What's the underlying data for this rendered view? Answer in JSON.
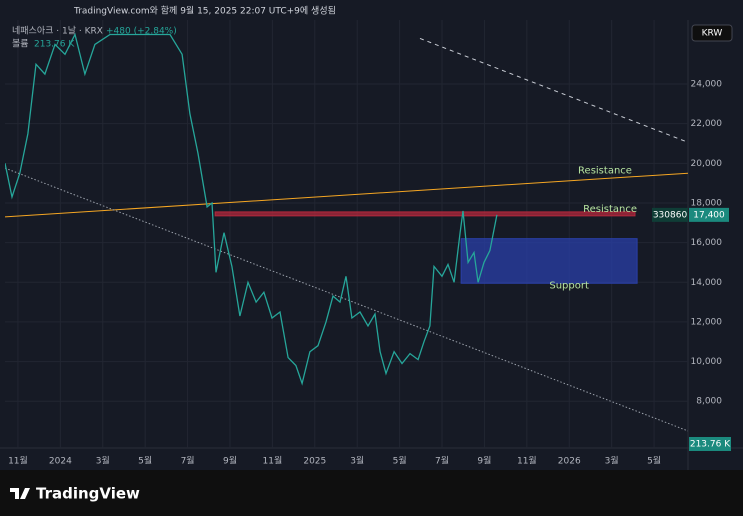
{
  "header": {
    "title": "TradingView.com와 함께 9월 15, 2025 22:07 UTC+9에 생성됨",
    "currency": "KRW",
    "logo": "TradingView"
  },
  "legend": {
    "symbol": "네패스아크 · 1날 · KRX",
    "change": "+480 (+2.84%)",
    "volume_name": "볼륨",
    "volume": "213.76 K"
  },
  "chart_data": {
    "type": "line",
    "color": "#26a69a",
    "x": [
      -0.61,
      -0.28,
      0.09,
      0.47,
      0.85,
      1.27,
      1.75,
      2.22,
      2.69,
      3.16,
      3.63,
      4.34,
      5.28,
      6.23,
      7.17,
      7.74,
      8.11,
      8.49,
      8.92,
      9.15,
      9.34,
      9.72,
      10.09,
      10.47,
      10.85,
      11.23,
      11.6,
      11.98,
      12.36,
      12.74,
      13.11,
      13.4,
      13.77,
      14.15,
      14.53,
      14.86,
      15.19,
      15.47,
      15.75,
      16.13,
      16.51,
      16.84,
      17.08,
      17.36,
      17.74,
      18.11,
      18.49,
      18.87,
      19.15,
      19.43,
      19.62,
      20,
      20.28,
      20.57,
      20.85,
      20.99,
      21.23,
      21.51,
      21.7,
      21.98,
      22.26,
      22.59
    ],
    "values": [
      20000,
      18300,
      19500,
      21500,
      25000,
      24500,
      26000,
      25500,
      26500,
      24500,
      26000,
      26500,
      26500,
      26500,
      26500,
      25500,
      22500,
      20500,
      17800,
      18000,
      14500,
      16500,
      14800,
      12300,
      14000,
      13000,
      13500,
      12200,
      12500,
      10200,
      9800,
      8900,
      10500,
      10800,
      12000,
      13300,
      13000,
      14300,
      12200,
      12500,
      11800,
      12400,
      10500,
      9400,
      10500,
      9900,
      10400,
      10100,
      11000,
      11800,
      14800,
      14300,
      14900,
      14000,
      16500,
      17600,
      15000,
      15500,
      14000,
      15000,
      15600,
      17400
    ],
    "last_price": {
      "value": 17400,
      "label": "17,400"
    },
    "last_code": "330860",
    "volume_label": "213.76 K",
    "xlim": [
      -0.61,
      31.6
    ],
    "xticks": [
      {
        "value": 0,
        "label": "11월"
      },
      {
        "value": 2,
        "label": "2024"
      },
      {
        "value": 4,
        "label": "3월"
      },
      {
        "value": 6,
        "label": "5월"
      },
      {
        "value": 8,
        "label": "7월"
      },
      {
        "value": 10,
        "label": "9월"
      },
      {
        "value": 12,
        "label": "11월"
      },
      {
        "value": 14,
        "label": "2025"
      },
      {
        "value": 16,
        "label": "3월"
      },
      {
        "value": 18,
        "label": "5월"
      },
      {
        "value": 20,
        "label": "7월"
      },
      {
        "value": 22,
        "label": "9월"
      },
      {
        "value": 24,
        "label": "11월"
      },
      {
        "value": 26,
        "label": "2026"
      },
      {
        "value": 28,
        "label": "3월"
      },
      {
        "value": 30,
        "label": "5월"
      }
    ],
    "ylim": [
      5640,
      27230
    ],
    "yticks": [
      {
        "value": 8000,
        "label": "8,000"
      },
      {
        "value": 10000,
        "label": "10,000"
      },
      {
        "value": 12000,
        "label": "12,000"
      },
      {
        "value": 14000,
        "label": "14,000"
      },
      {
        "value": 16000,
        "label": "16,000"
      },
      {
        "value": 18000,
        "label": "18,000"
      },
      {
        "value": 20000,
        "label": "20,000"
      },
      {
        "value": 22000,
        "label": "22,000"
      },
      {
        "value": 24000,
        "label": "24,000"
      }
    ],
    "grid": true,
    "drawings": [
      {
        "kind": "line",
        "color": "#f5a623",
        "x": [
          -0.61,
          31.6
        ],
        "y": [
          17300,
          19500
        ],
        "label": "Resistance"
      },
      {
        "kind": "box",
        "color": "#b2283c",
        "x": [
          9.3,
          29.1
        ],
        "y": [
          17350,
          17550
        ],
        "label": "Resistance"
      },
      {
        "kind": "box",
        "color": "#2a3fa8",
        "x": [
          20.9,
          29.2
        ],
        "y": [
          13950,
          16200
        ],
        "label": "Support"
      },
      {
        "kind": "dotted",
        "color": "#9aa0aa",
        "x": [
          -0.61,
          31.6
        ],
        "y": [
          19760,
          6500
        ]
      },
      {
        "kind": "dashed",
        "color": "#c8ccd4",
        "x": [
          18.96,
          31.6
        ],
        "y": [
          26300,
          21060
        ]
      }
    ]
  }
}
